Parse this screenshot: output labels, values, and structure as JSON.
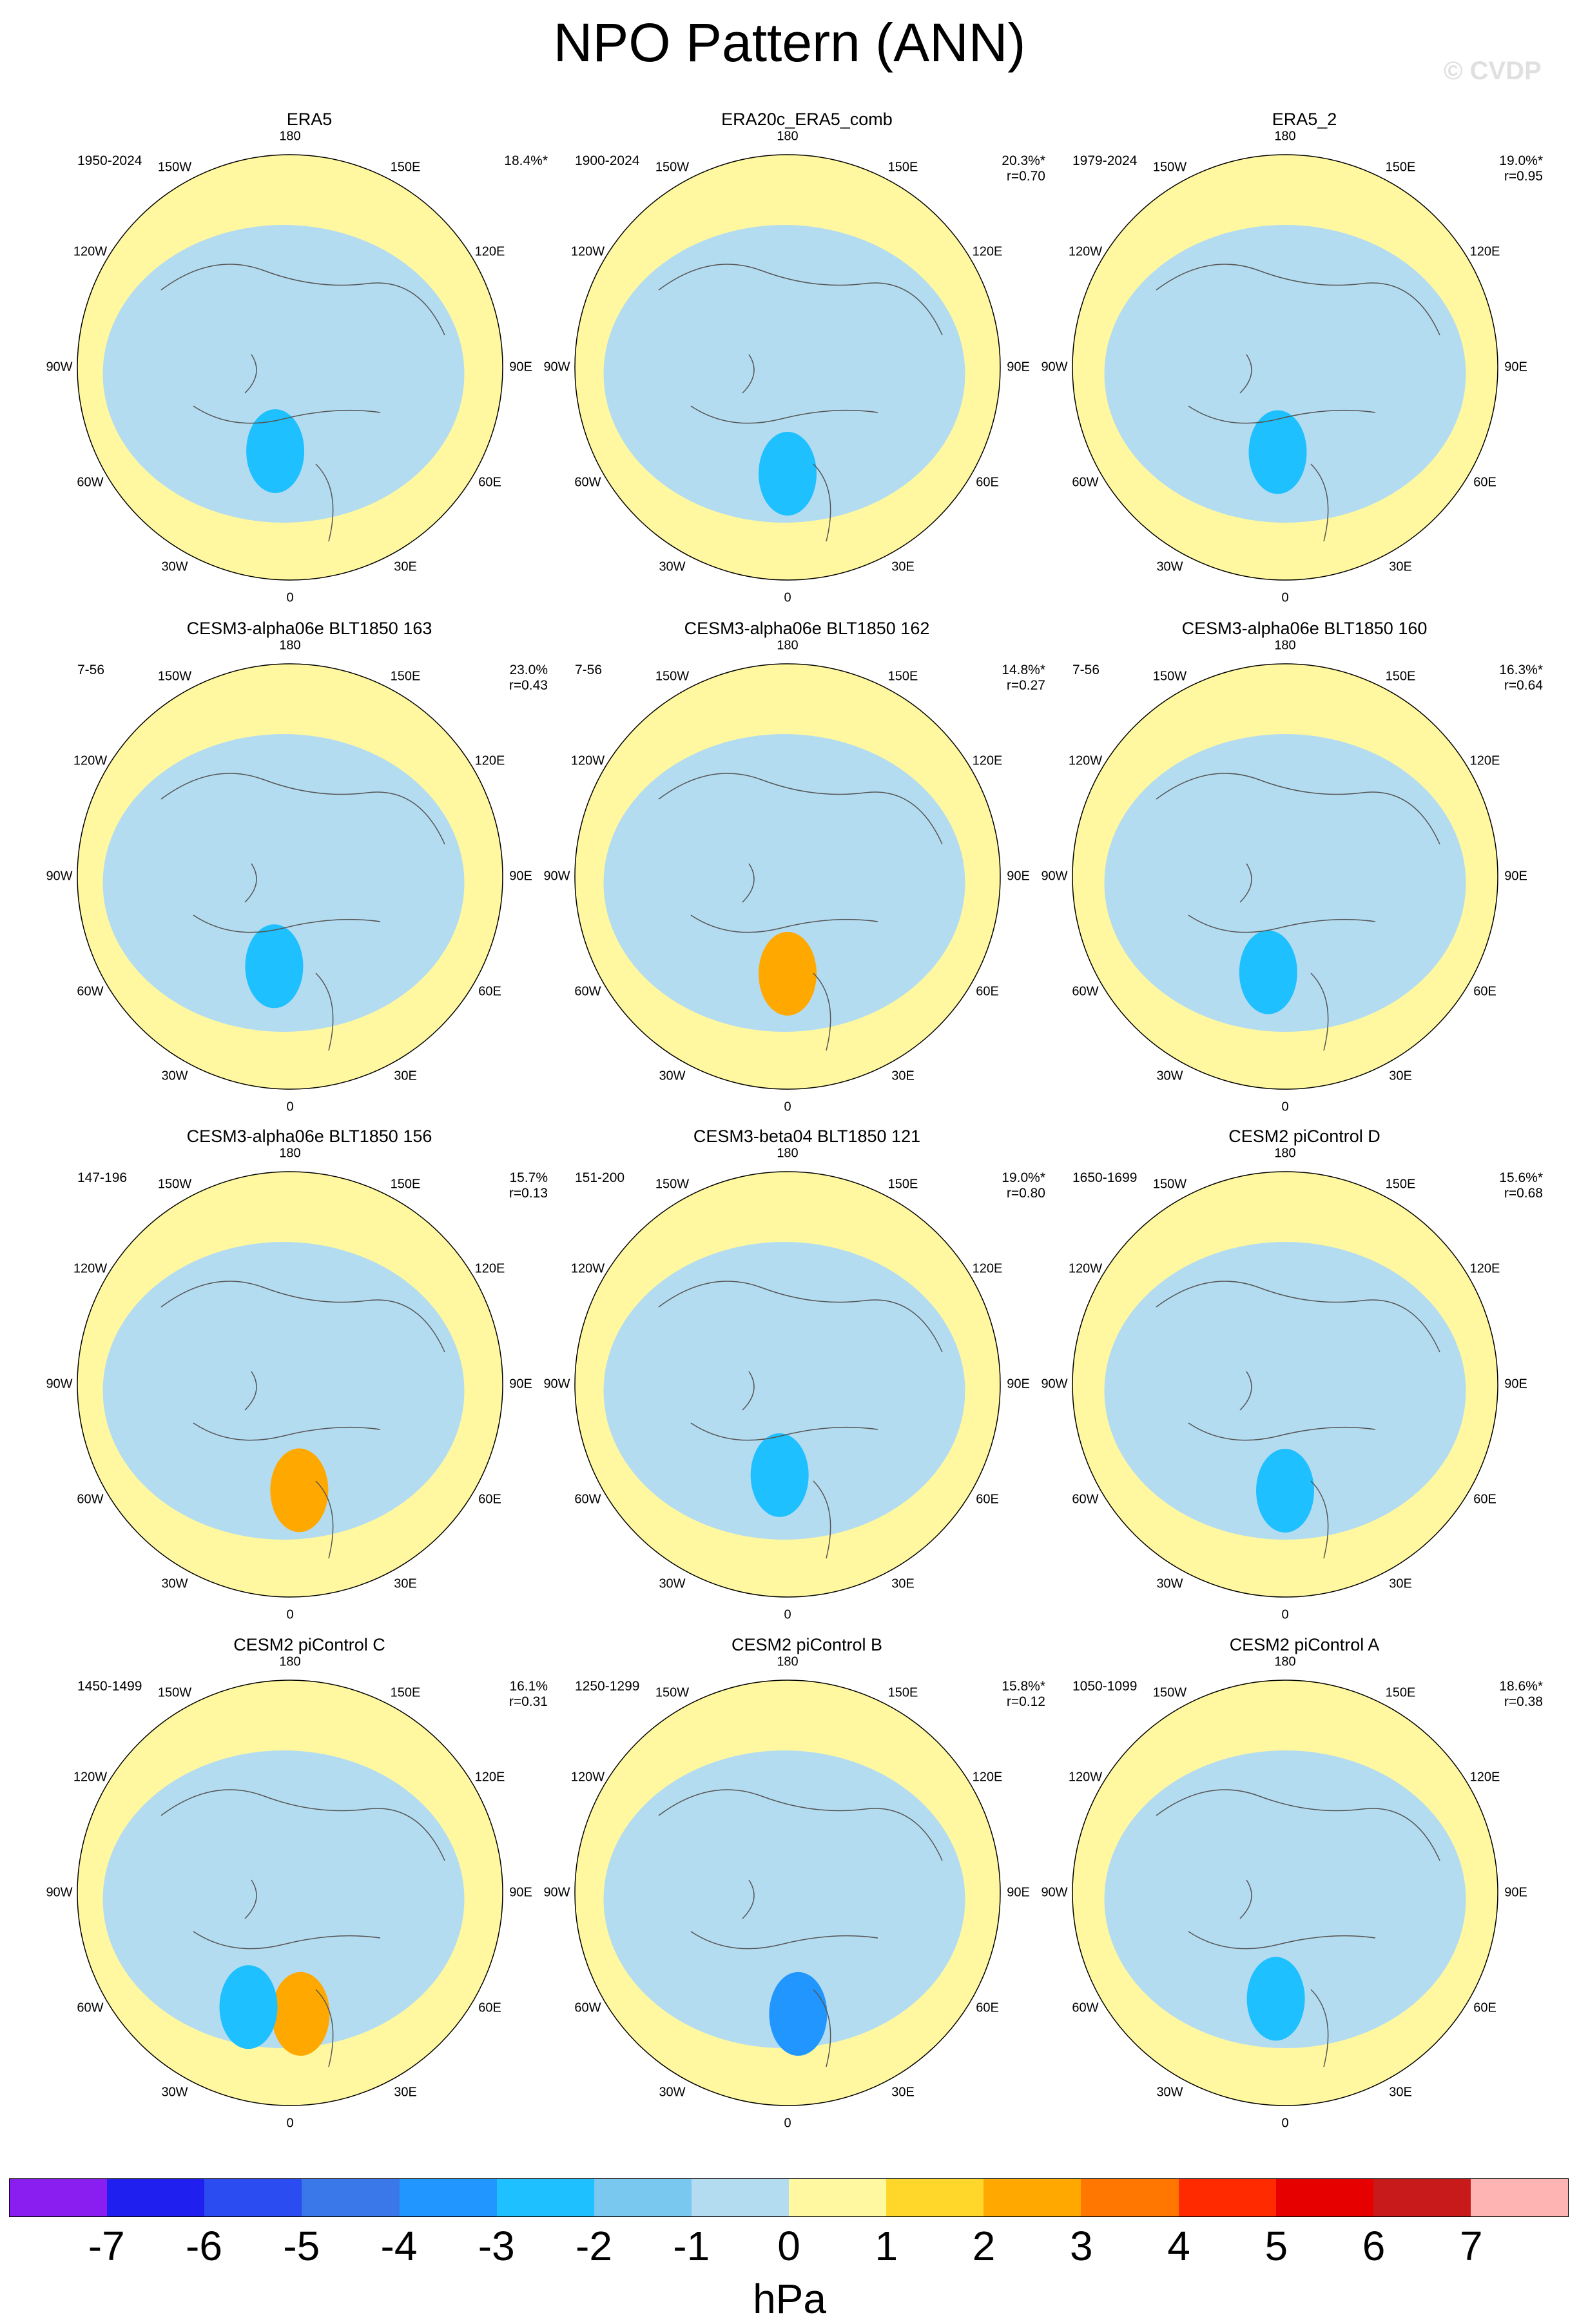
{
  "title": "NPO Pattern (ANN)",
  "watermark": "© CVDP",
  "units": "hPa",
  "longitude_labels": {
    "n180": "180",
    "e150": "150E",
    "e120": "120E",
    "e90": "90E",
    "e60": "60E",
    "e30": "30E",
    "s0": "0",
    "w30": "30W",
    "w60": "60W",
    "w90": "90W",
    "w120": "120W",
    "w150": "150W"
  },
  "colorbar": {
    "colors": [
      "#8a1ef0",
      "#1f1ff0",
      "#2a4cf0",
      "#3a78ea",
      "#2196ff",
      "#1ec0ff",
      "#78c8f0",
      "#b4dcf0",
      "#fff8a0",
      "#ffd72a",
      "#ffa800",
      "#ff7700",
      "#ff2a00",
      "#e60000",
      "#c81a1a",
      "#ffb4b4"
    ],
    "labels": [
      "-7",
      "-6",
      "-5",
      "-4",
      "-3",
      "-2",
      "-1",
      "0",
      "1",
      "2",
      "3",
      "4",
      "5",
      "6",
      "7"
    ]
  },
  "panels": [
    {
      "name": "ERA5",
      "years": "1950-2024",
      "pct": "18.4%*",
      "r": ""
    },
    {
      "name": "ERA20c_ERA5_comb",
      "years": "1900-2024",
      "pct": "20.3%*",
      "r": "r=0.70"
    },
    {
      "name": "ERA5_2",
      "years": "1979-2024",
      "pct": "19.0%*",
      "r": "r=0.95"
    },
    {
      "name": "CESM3-alpha06e BLT1850 163",
      "years": "7-56",
      "pct": "23.0%",
      "r": "r=0.43"
    },
    {
      "name": "CESM3-alpha06e BLT1850 162",
      "years": "7-56",
      "pct": "14.8%*",
      "r": "r=0.27"
    },
    {
      "name": "CESM3-alpha06e BLT1850 160",
      "years": "7-56",
      "pct": "16.3%*",
      "r": "r=0.64"
    },
    {
      "name": "CESM3-alpha06e BLT1850 156",
      "years": "147-196",
      "pct": "15.7%",
      "r": "r=0.13"
    },
    {
      "name": "CESM3-beta04 BLT1850 121",
      "years": "151-200",
      "pct": "19.0%*",
      "r": "r=0.80"
    },
    {
      "name": "CESM2 piControl D",
      "years": "1650-1699",
      "pct": "15.6%*",
      "r": "r=0.68"
    },
    {
      "name": "CESM2 piControl C",
      "years": "1450-1499",
      "pct": "16.1%",
      "r": "r=0.31"
    },
    {
      "name": "CESM2 piControl B",
      "years": "1250-1299",
      "pct": "15.8%*",
      "r": "r=0.12"
    },
    {
      "name": "CESM2 piControl A",
      "years": "1050-1099",
      "pct": "18.6%*",
      "r": "r=0.38"
    }
  ],
  "map_fields": {
    "ocean_fill": "#b4dcf0",
    "positive_fill": "#fff8a0",
    "cores": [
      [
        {
          "v": -2,
          "lon": 170,
          "lat": 62
        }
      ],
      [
        {
          "v": -2,
          "lon": 180,
          "lat": 55
        }
      ],
      [
        {
          "v": -2,
          "lon": 175,
          "lat": 62
        }
      ],
      [
        {
          "v": -2,
          "lon": 170,
          "lat": 60
        }
      ],
      [
        {
          "v": 2,
          "lon": 180,
          "lat": 58
        }
      ],
      [
        {
          "v": -2,
          "lon": 170,
          "lat": 58
        }
      ],
      [
        {
          "v": 2,
          "lon": 185,
          "lat": 55
        }
      ],
      [
        {
          "v": -2,
          "lon": 175,
          "lat": 60
        }
      ],
      [
        {
          "v": -2,
          "lon": 180,
          "lat": 55
        }
      ],
      [
        {
          "v": 2,
          "lon": 185,
          "lat": 50
        },
        {
          "v": -2,
          "lon": 160,
          "lat": 50
        }
      ],
      [
        {
          "v": -3,
          "lon": 185,
          "lat": 50
        }
      ],
      [
        {
          "v": -2,
          "lon": 175,
          "lat": 55
        }
      ]
    ]
  }
}
